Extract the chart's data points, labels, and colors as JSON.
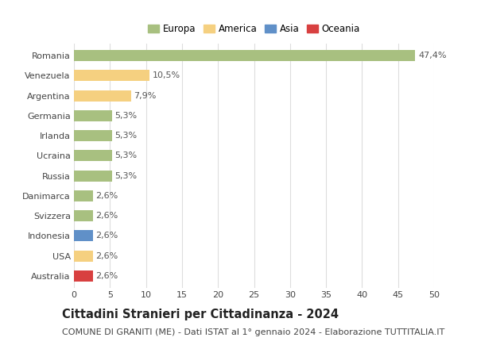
{
  "countries": [
    "Romania",
    "Venezuela",
    "Argentina",
    "Germania",
    "Irlanda",
    "Ucraina",
    "Russia",
    "Danimarca",
    "Svizzera",
    "Indonesia",
    "USA",
    "Australia"
  ],
  "values": [
    47.4,
    10.5,
    7.9,
    5.3,
    5.3,
    5.3,
    5.3,
    2.6,
    2.6,
    2.6,
    2.6,
    2.6
  ],
  "labels": [
    "47,4%",
    "10,5%",
    "7,9%",
    "5,3%",
    "5,3%",
    "5,3%",
    "5,3%",
    "2,6%",
    "2,6%",
    "2,6%",
    "2,6%",
    "2,6%"
  ],
  "continents": [
    "Europa",
    "America",
    "America",
    "Europa",
    "Europa",
    "Europa",
    "Europa",
    "Europa",
    "Europa",
    "Asia",
    "America",
    "Oceania"
  ],
  "colors": {
    "Europa": "#a8c080",
    "America": "#f5d080",
    "Asia": "#6090c8",
    "Oceania": "#d84040"
  },
  "xlim": [
    0,
    50
  ],
  "xticks": [
    0,
    5,
    10,
    15,
    20,
    25,
    30,
    35,
    40,
    45,
    50
  ],
  "title": "Cittadini Stranieri per Cittadinanza - 2024",
  "subtitle": "COMUNE DI GRANITI (ME) - Dati ISTAT al 1° gennaio 2024 - Elaborazione TUTTITALIA.IT",
  "background_color": "#ffffff",
  "grid_color": "#dddddd",
  "bar_height": 0.55,
  "title_fontsize": 10.5,
  "subtitle_fontsize": 8,
  "label_fontsize": 8,
  "tick_fontsize": 8,
  "legend_fontsize": 8.5
}
